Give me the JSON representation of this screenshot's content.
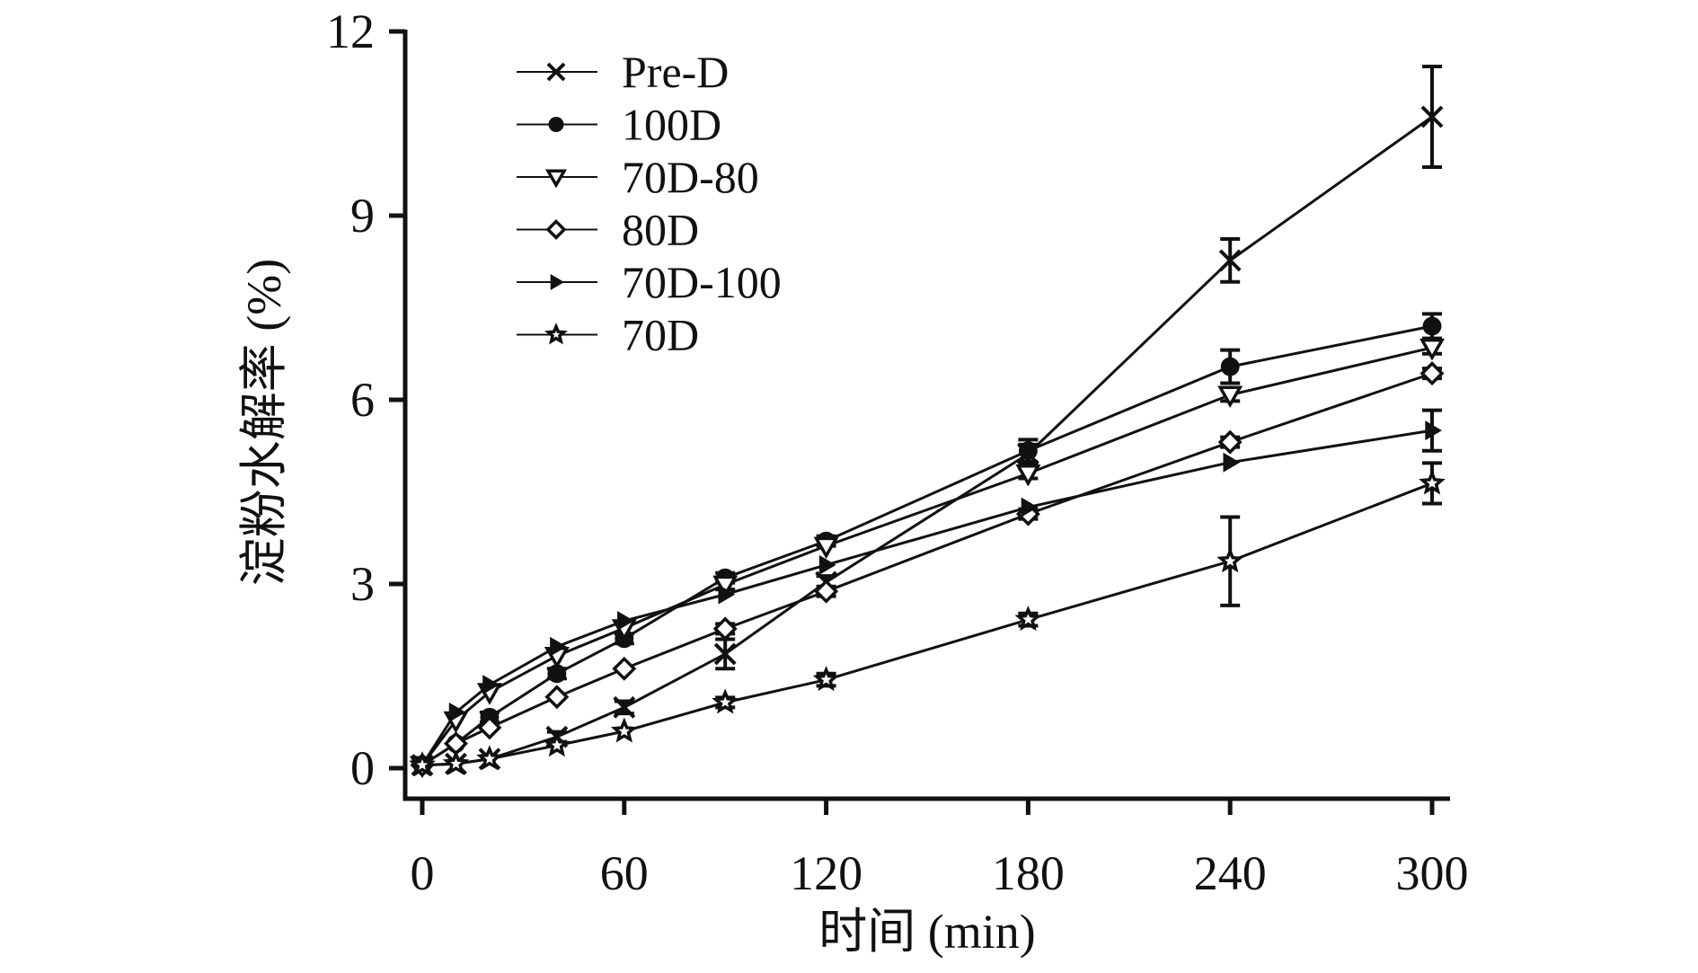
{
  "chart_data": {
    "type": "line",
    "title": "",
    "xlabel": "时间 (min)",
    "ylabel": "淀粉水解率 (%)",
    "xlim": [
      0,
      300
    ],
    "ylim": [
      0,
      12
    ],
    "xticks": [
      0,
      60,
      120,
      180,
      240,
      300
    ],
    "yticks": [
      0,
      3,
      6,
      9,
      12
    ],
    "grid": false,
    "legend_position": "top-left",
    "x": [
      0,
      10,
      20,
      40,
      60,
      90,
      120,
      180,
      240,
      300
    ],
    "series": [
      {
        "name": "Pre-D",
        "marker": "x-cross",
        "values": [
          0.05,
          0.07,
          0.15,
          0.51,
          0.99,
          1.86,
          3.03,
          5.12,
          8.27,
          10.61
        ],
        "errors": [
          0.05,
          0.05,
          0.05,
          0.08,
          0.1,
          0.24,
          0.1,
          0.15,
          0.35,
          0.82
        ]
      },
      {
        "name": "100D",
        "marker": "filled-circle",
        "values": [
          0.05,
          0.4,
          0.83,
          1.54,
          2.11,
          3.1,
          3.7,
          5.17,
          6.54,
          7.2
        ],
        "errors": [
          0.05,
          0.05,
          0.08,
          0.08,
          0.08,
          0.08,
          0.08,
          0.18,
          0.27,
          0.2
        ]
      },
      {
        "name": "70D-80",
        "marker": "open-triangle-down",
        "values": [
          0.05,
          0.78,
          1.24,
          1.83,
          2.28,
          2.99,
          3.62,
          4.8,
          6.08,
          6.85
        ],
        "errors": [
          0.05,
          0.05,
          0.05,
          0.05,
          0.05,
          0.08,
          0.05,
          0.08,
          0.1,
          0.1
        ]
      },
      {
        "name": "80D",
        "marker": "open-diamond",
        "values": [
          0.05,
          0.4,
          0.66,
          1.16,
          1.62,
          2.27,
          2.88,
          4.14,
          5.31,
          6.43
        ],
        "errors": [
          0.05,
          0.05,
          0.05,
          0.05,
          0.05,
          0.08,
          0.08,
          0.08,
          0.08,
          0.08
        ]
      },
      {
        "name": "70D-100",
        "marker": "filled-triangle-right",
        "values": [
          0.05,
          0.91,
          1.36,
          1.98,
          2.4,
          2.83,
          3.31,
          4.25,
          4.98,
          5.5
        ],
        "errors": [
          0.05,
          0.05,
          0.05,
          0.05,
          0.05,
          0.05,
          0.05,
          0.05,
          0.05,
          0.33
        ]
      },
      {
        "name": "70D",
        "marker": "open-star",
        "values": [
          0.05,
          0.07,
          0.15,
          0.37,
          0.6,
          1.07,
          1.44,
          2.42,
          3.37,
          4.64
        ],
        "errors": [
          0.05,
          0.05,
          0.05,
          0.05,
          0.05,
          0.08,
          0.1,
          0.1,
          0.72,
          0.33
        ]
      }
    ]
  }
}
